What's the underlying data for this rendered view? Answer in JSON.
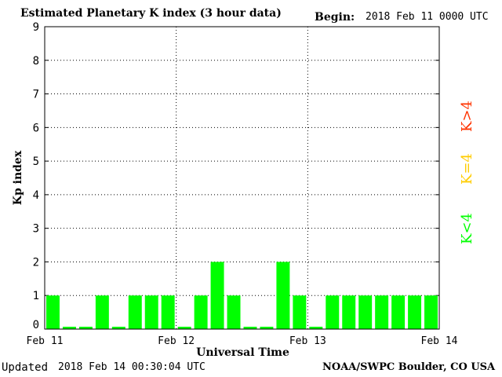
{
  "chart_data": {
    "type": "bar",
    "title": "Estimated Planetary K index (3 hour data)",
    "begin_label": "Begin:",
    "begin_value": "2018 Feb 11 0000 UTC",
    "xlabel": "Universal Time",
    "ylabel": "Kp index",
    "ylim": [
      0,
      9
    ],
    "y_ticks": [
      "0",
      "1",
      "2",
      "3",
      "4",
      "5",
      "6",
      "7",
      "8",
      "9"
    ],
    "x_ticks": [
      "Feb 11",
      "Feb 12",
      "Feb 13",
      "Feb 14"
    ],
    "values": [
      1,
      0,
      0,
      1,
      0,
      1,
      1,
      1,
      0,
      1,
      2,
      1,
      0,
      0,
      2,
      1,
      0,
      1,
      1,
      1,
      1,
      1,
      1,
      1
    ],
    "grid": true,
    "bar_color": "#00ff00",
    "legend": [
      {
        "label": "K>4",
        "color": "#ff3300"
      },
      {
        "label": "K=4",
        "color": "#ffcc00"
      },
      {
        "label": "K<4",
        "color": "#00ff00"
      }
    ]
  },
  "footer": {
    "updated_label": "Updated",
    "updated_value": "2018 Feb 14 00:30:04 UTC",
    "credit": "NOAA/SWPC Boulder, CO USA"
  }
}
